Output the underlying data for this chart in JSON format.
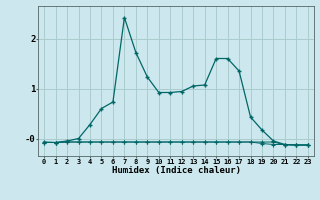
{
  "xlabel": "Humidex (Indice chaleur)",
  "bg_color": "#cce8ee",
  "grid_color": "#aacccc",
  "line_color": "#006666",
  "xlim": [
    -0.5,
    23.5
  ],
  "ylim": [
    -0.35,
    2.65
  ],
  "xticks": [
    0,
    1,
    2,
    3,
    4,
    5,
    6,
    7,
    8,
    9,
    10,
    11,
    12,
    13,
    14,
    15,
    16,
    17,
    18,
    19,
    20,
    21,
    22,
    23
  ],
  "curve1_x": [
    0,
    1,
    2,
    3,
    4,
    5,
    6,
    7,
    8,
    9,
    10,
    11,
    12,
    13,
    14,
    15,
    16,
    17,
    18,
    19,
    20,
    21,
    22,
    23
  ],
  "curve1_y": [
    -0.07,
    -0.08,
    -0.05,
    0.0,
    0.28,
    0.6,
    0.73,
    2.42,
    1.72,
    1.23,
    0.92,
    0.92,
    0.94,
    1.05,
    1.07,
    1.6,
    1.6,
    1.35,
    0.43,
    0.17,
    -0.05,
    -0.12,
    -0.13,
    -0.13
  ],
  "curve2_x": [
    0,
    1,
    2,
    3,
    4,
    5,
    6,
    7,
    8,
    9,
    10,
    11,
    12,
    13,
    14,
    15,
    16,
    17,
    18,
    19,
    20,
    21,
    22,
    23
  ],
  "curve2_y": [
    -0.08,
    -0.08,
    -0.07,
    -0.07,
    -0.07,
    -0.07,
    -0.07,
    -0.07,
    -0.07,
    -0.07,
    -0.07,
    -0.07,
    -0.07,
    -0.07,
    -0.07,
    -0.07,
    -0.07,
    -0.07,
    -0.07,
    -0.07,
    -0.07,
    -0.13,
    -0.13,
    -0.13
  ],
  "curve3_x": [
    0,
    1,
    2,
    3,
    4,
    5,
    6,
    7,
    8,
    9,
    10,
    11,
    12,
    13,
    14,
    15,
    16,
    17,
    18,
    19,
    20,
    21,
    22,
    23
  ],
  "curve3_y": [
    -0.08,
    -0.08,
    -0.07,
    -0.07,
    -0.07,
    -0.07,
    -0.07,
    -0.07,
    -0.07,
    -0.07,
    -0.07,
    -0.07,
    -0.07,
    -0.07,
    -0.07,
    -0.07,
    -0.07,
    -0.07,
    -0.07,
    -0.1,
    -0.12,
    -0.12,
    -0.13,
    -0.13
  ]
}
